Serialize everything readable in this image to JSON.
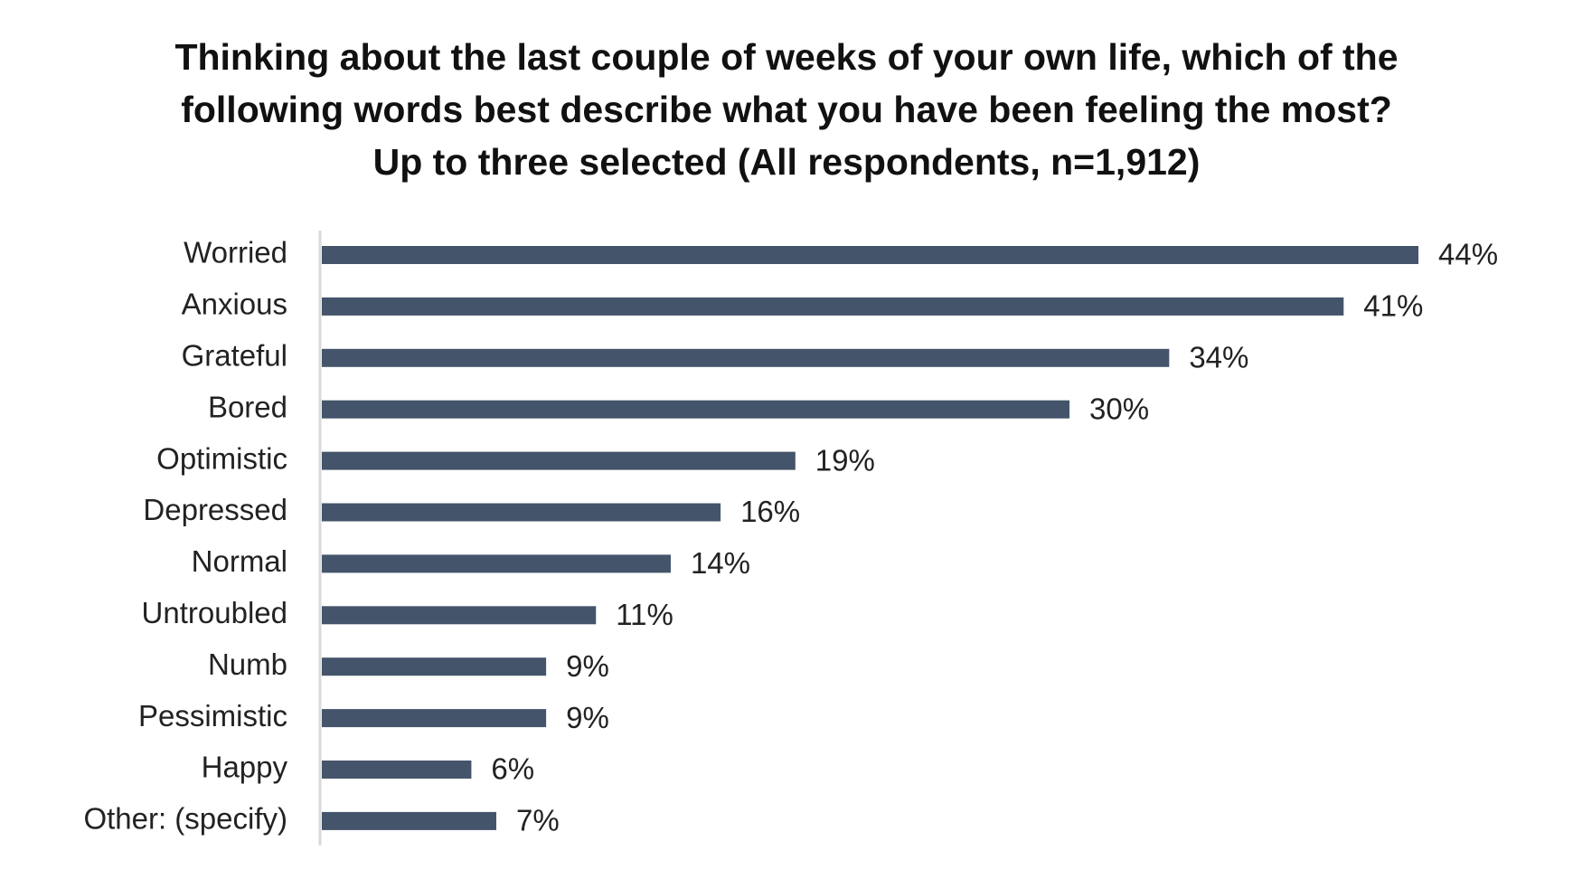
{
  "chart_data": {
    "type": "bar",
    "orientation": "horizontal",
    "title_lines": [
      "Thinking about the last couple of weeks of your own life, which of the",
      "following words best describe what you have been feeling the most?",
      "Up to three selected (All respondents, n=1,912)"
    ],
    "categories": [
      "Worried",
      "Anxious",
      "Grateful",
      "Bored",
      "Optimistic",
      "Depressed",
      "Normal",
      "Untroubled",
      "Numb",
      "Pessimistic",
      "Happy",
      "Other: (specify)"
    ],
    "values": [
      44,
      41,
      34,
      30,
      19,
      16,
      14,
      11,
      9,
      9,
      6,
      7
    ],
    "value_labels": [
      "44%",
      "41%",
      "34%",
      "30%",
      "19%",
      "16%",
      "14%",
      "11%",
      "9%",
      "9%",
      "6%",
      "7%"
    ],
    "unit": "%",
    "xlim": [
      0,
      44
    ],
    "grid": false,
    "legend": "none",
    "bar_color": "#44546a",
    "axis_color": "#d9d9d9"
  }
}
